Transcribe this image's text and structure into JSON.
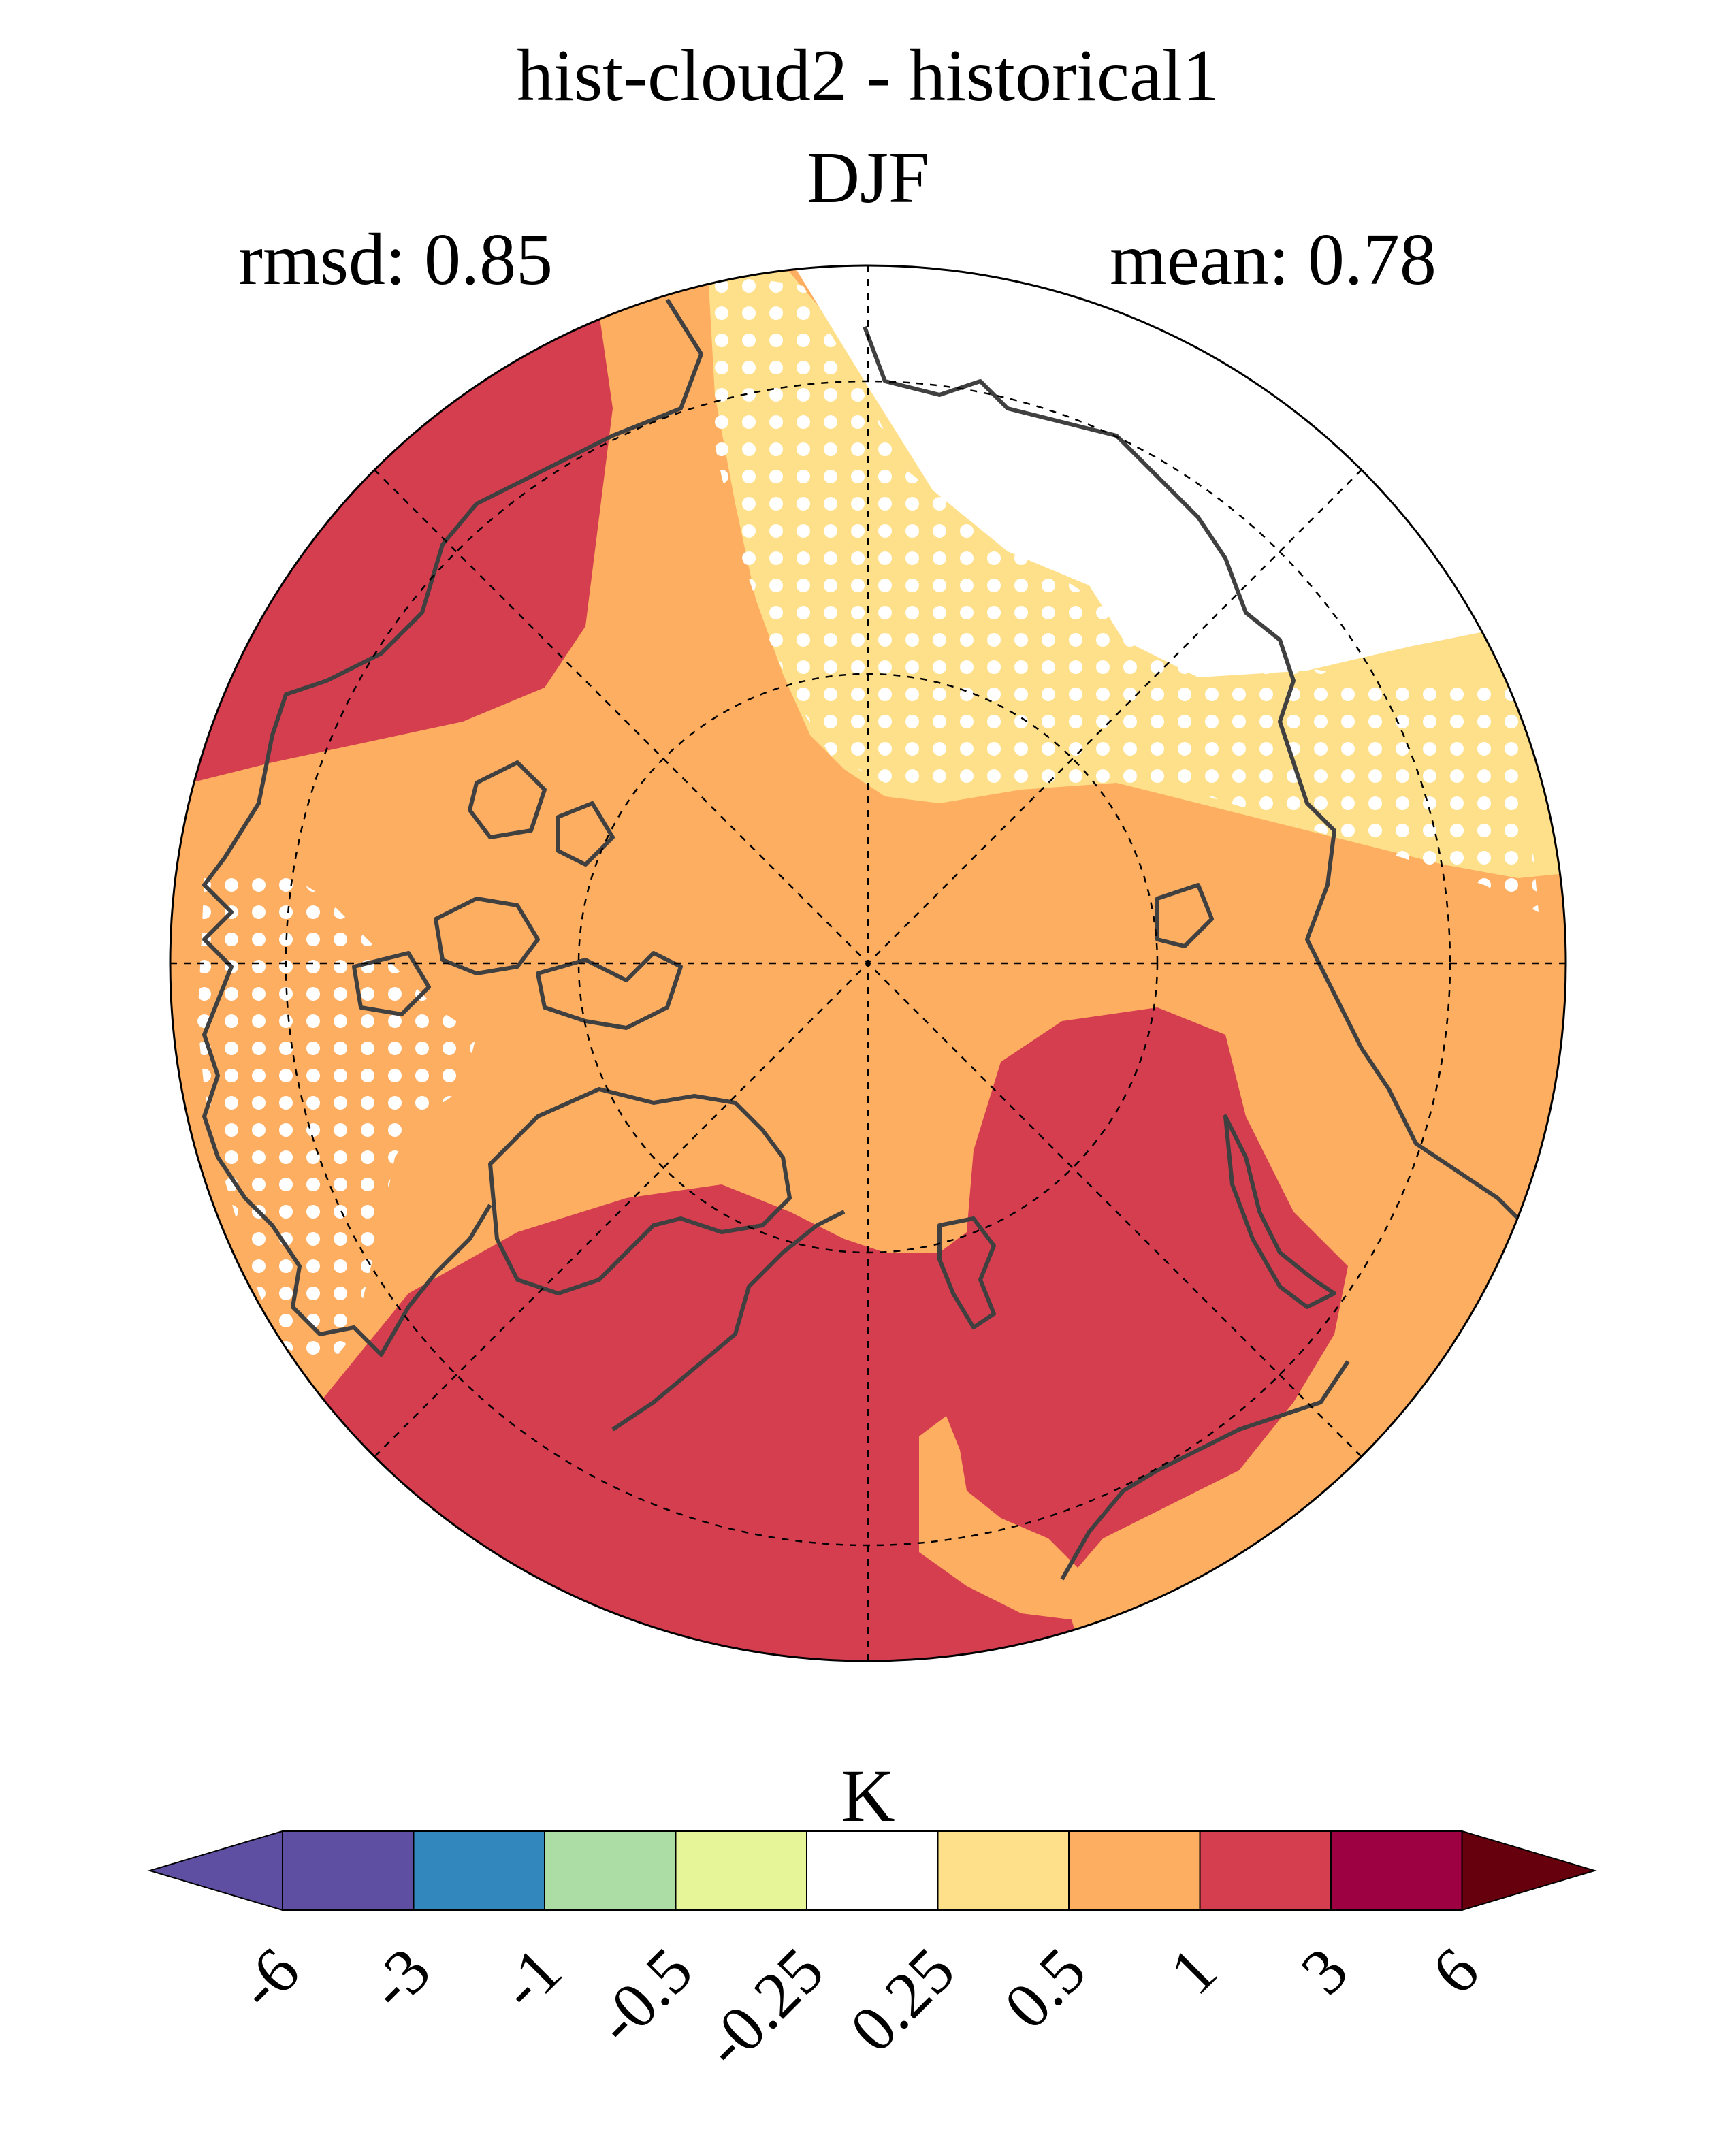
{
  "title": "hist-cloud2 - historical1",
  "subtitle": "DJF",
  "stats": {
    "rmsd": "rmsd: 0.85",
    "mean": "mean: 0.78"
  },
  "colorbar": {
    "unit": "K",
    "ticks": [
      "-6",
      "-3",
      "-1",
      "-0.5",
      "-0.25",
      "0.25",
      "0.5",
      "1",
      "3",
      "6"
    ],
    "colors": [
      "#5e4fa2",
      "#3288bd",
      "#abdda4",
      "#e6f598",
      "#ffffff",
      "#fee08b",
      "#fdae61",
      "#d53e4f",
      "#9e0142"
    ],
    "extend_low_color": "#5e4fa2",
    "extend_high_color": "#67000d"
  },
  "map": {
    "projection": "north polar stereographic",
    "field_colors": {
      "a": "#fdae61",
      "b": "#d53e4f",
      "c": "#fee08b",
      "d": "#ffffff"
    },
    "stipple_color": "#ffffff",
    "coast_color": "#404040"
  }
}
